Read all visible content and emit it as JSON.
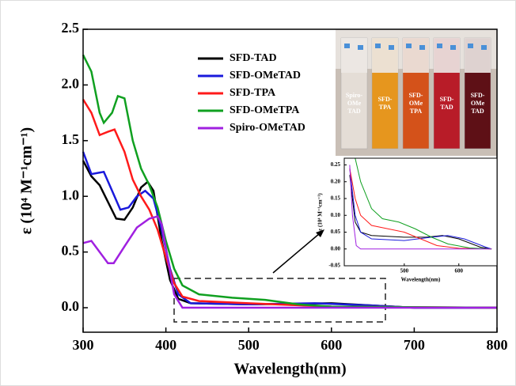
{
  "chart_data": [
    {
      "type": "line",
      "x_label": "Wavelength(nm)",
      "y_label": "ε (10⁴ M⁻¹cm⁻¹)",
      "xlim": [
        300,
        800
      ],
      "ylim": [
        -0.22,
        2.5
      ],
      "xticks": [
        300,
        400,
        500,
        600,
        700,
        800
      ],
      "yticks": [
        {
          "value": 0,
          "label": "0.0"
        },
        0.5,
        {
          "value": 1,
          "label": "1.0"
        },
        1.5,
        {
          "value": 2,
          "label": "2.0"
        },
        2.5
      ],
      "series": [
        {
          "name": "SFD-TAD",
          "color": "#000000",
          "x": [
            300,
            310,
            320,
            330,
            340,
            350,
            360,
            370,
            378,
            385,
            395,
            405,
            415,
            430,
            500,
            600,
            650,
            700,
            800
          ],
          "values": [
            1.32,
            1.18,
            1.1,
            0.95,
            0.8,
            0.79,
            0.9,
            1.08,
            1.13,
            1.05,
            0.6,
            0.25,
            0.08,
            0.04,
            0.03,
            0.04,
            0.02,
            0.0,
            0.0
          ]
        },
        {
          "name": "SFD-OMeTAD",
          "color": "#1a1adc",
          "x": [
            300,
            310,
            325,
            335,
            345,
            355,
            365,
            375,
            385,
            395,
            405,
            415,
            430,
            500,
            580,
            650,
            700,
            800
          ],
          "values": [
            1.4,
            1.2,
            1.22,
            1.05,
            0.88,
            0.9,
            1.0,
            1.05,
            0.98,
            0.7,
            0.35,
            0.12,
            0.04,
            0.03,
            0.04,
            0.02,
            0.0,
            0.0
          ]
        },
        {
          "name": "SFD-TPA",
          "color": "#ff1a1a",
          "x": [
            300,
            310,
            320,
            330,
            338,
            350,
            360,
            370,
            380,
            390,
            400,
            410,
            420,
            440,
            500,
            600,
            800
          ],
          "values": [
            1.87,
            1.75,
            1.55,
            1.58,
            1.6,
            1.4,
            1.15,
            1.0,
            0.88,
            0.7,
            0.45,
            0.22,
            0.1,
            0.06,
            0.04,
            0.01,
            0.0
          ]
        },
        {
          "name": "SFD-OMeTPA",
          "color": "#10a020",
          "x": [
            300,
            310,
            320,
            325,
            335,
            342,
            350,
            360,
            370,
            380,
            390,
            400,
            410,
            420,
            440,
            480,
            520,
            560,
            600,
            800
          ],
          "values": [
            2.27,
            2.12,
            1.75,
            1.66,
            1.75,
            1.9,
            1.88,
            1.5,
            1.25,
            1.1,
            0.9,
            0.6,
            0.35,
            0.2,
            0.12,
            0.09,
            0.07,
            0.03,
            0.01,
            0.0
          ]
        },
        {
          "name": "Spiro-OMeTAD",
          "color": "#a020e0",
          "x": [
            300,
            310,
            320,
            330,
            337,
            350,
            365,
            380,
            390,
            395,
            402,
            410,
            420,
            800
          ],
          "values": [
            0.58,
            0.6,
            0.5,
            0.4,
            0.4,
            0.55,
            0.72,
            0.8,
            0.82,
            0.75,
            0.45,
            0.12,
            0.0,
            0.0
          ]
        }
      ],
      "photo_labels": [
        [
          "Spiro-",
          "OMe",
          "TAD"
        ],
        [
          "SFD-",
          "TPA"
        ],
        [
          "SFD-",
          "OMe",
          "TPA"
        ],
        [
          "SFD-",
          "TAD"
        ],
        [
          "SFD-",
          "OMe",
          "TAD"
        ]
      ]
    },
    {
      "type": "line",
      "x_label": "Wavelength(nm)",
      "y_label": "ε (10⁴ M⁻¹cm⁻¹)",
      "xlim": [
        390,
        670
      ],
      "ylim": [
        -0.05,
        0.27
      ],
      "xticks": [
        500,
        600
      ],
      "yticks": [
        {
          "value": -0.05,
          "label": "-0.05"
        },
        {
          "value": 0,
          "label": "0.00"
        },
        0.05,
        {
          "value": 0.1,
          "label": "0.10"
        },
        0.15,
        {
          "value": 0.2,
          "label": "0.20"
        },
        0.25
      ],
      "series": [
        {
          "color": "#000000",
          "x": [
            400,
            410,
            420,
            440,
            500,
            540,
            570,
            600,
            640,
            660
          ],
          "values": [
            0.22,
            0.08,
            0.05,
            0.04,
            0.035,
            0.035,
            0.04,
            0.03,
            0.005,
            0.0
          ]
        },
        {
          "color": "#1a1adc",
          "x": [
            400,
            410,
            420,
            440,
            500,
            550,
            580,
            610,
            650,
            660
          ],
          "values": [
            0.24,
            0.1,
            0.05,
            0.03,
            0.025,
            0.035,
            0.04,
            0.03,
            0.005,
            0.0
          ]
        },
        {
          "color": "#ff1a1a",
          "x": [
            400,
            410,
            420,
            440,
            470,
            500,
            530,
            560,
            600,
            660
          ],
          "values": [
            0.24,
            0.15,
            0.1,
            0.07,
            0.06,
            0.05,
            0.03,
            0.01,
            0.002,
            0.0
          ]
        },
        {
          "color": "#10a020",
          "x": [
            410,
            420,
            440,
            460,
            490,
            520,
            550,
            580,
            620,
            660
          ],
          "values": [
            0.27,
            0.2,
            0.12,
            0.09,
            0.08,
            0.06,
            0.035,
            0.015,
            0.003,
            0.0
          ]
        },
        {
          "color": "#a020e0",
          "x": [
            400,
            405,
            412,
            420,
            660
          ],
          "values": [
            0.25,
            0.1,
            0.01,
            0.0,
            0.0
          ]
        }
      ]
    }
  ]
}
